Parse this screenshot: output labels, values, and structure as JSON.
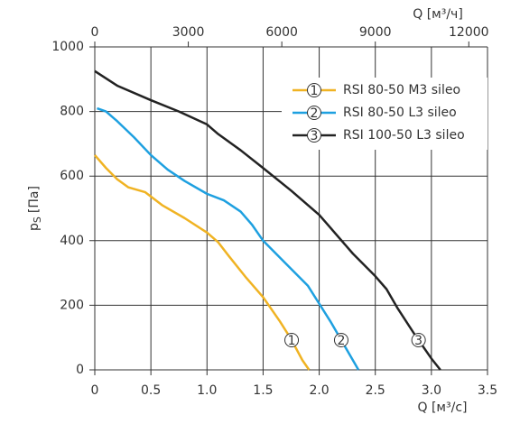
{
  "chart_data": {
    "type": "line",
    "xlabel": "Q [м³/с]",
    "x2label": "Q [м³/ч]",
    "ylabel": [
      "p",
      "S",
      "[Па]"
    ],
    "xlim": [
      0,
      3.5
    ],
    "xticks": [
      0,
      0.5,
      {
        "value": 1,
        "label": "1.0"
      },
      1.5,
      {
        "value": 2,
        "label": "2.0"
      },
      2.5,
      {
        "value": 3,
        "label": "3.0"
      },
      3.5
    ],
    "x2lim": [
      0,
      12600
    ],
    "x2ticks": [
      0,
      3000,
      6000,
      9000,
      12000
    ],
    "ylim": [
      0,
      1000
    ],
    "yticks": [
      0,
      200,
      400,
      600,
      800,
      1000
    ],
    "grid": true,
    "legend": "upper right",
    "series": [
      {
        "name": "RSI 80-50 M3 sileo",
        "label": "1",
        "color": "#f0b323",
        "x": [
          0,
          0.1,
          0.2,
          0.3,
          0.45,
          0.6,
          0.8,
          1.0,
          1.1,
          1.2,
          1.35,
          1.5,
          1.65,
          1.75,
          1.85,
          1.91
        ],
        "values": [
          665,
          625,
          590,
          565,
          550,
          510,
          470,
          425,
          395,
          350,
          285,
          225,
          150,
          95,
          30,
          0
        ]
      },
      {
        "name": "RSI 80-50 L3 sileo",
        "label": "2",
        "color": "#1ea0e0",
        "x": [
          0.02,
          0.1,
          0.2,
          0.35,
          0.5,
          0.65,
          0.8,
          1.0,
          1.15,
          1.3,
          1.4,
          1.5,
          1.7,
          1.9,
          2.0,
          2.1,
          2.2,
          2.3,
          2.35
        ],
        "values": [
          810,
          800,
          770,
          720,
          665,
          620,
          585,
          545,
          525,
          490,
          450,
          400,
          330,
          260,
          205,
          150,
          90,
          30,
          0
        ]
      },
      {
        "name": "RSI 100-50 L3 sileo",
        "label": "3",
        "color": "#222222",
        "x": [
          0,
          0.2,
          0.5,
          0.75,
          1.0,
          1.1,
          1.3,
          1.5,
          1.75,
          2.0,
          2.1,
          2.3,
          2.5,
          2.6,
          2.7,
          2.85,
          3.0,
          3.08
        ],
        "values": [
          925,
          880,
          835,
          800,
          760,
          730,
          680,
          625,
          555,
          480,
          440,
          360,
          290,
          250,
          190,
          110,
          35,
          0
        ]
      }
    ]
  }
}
